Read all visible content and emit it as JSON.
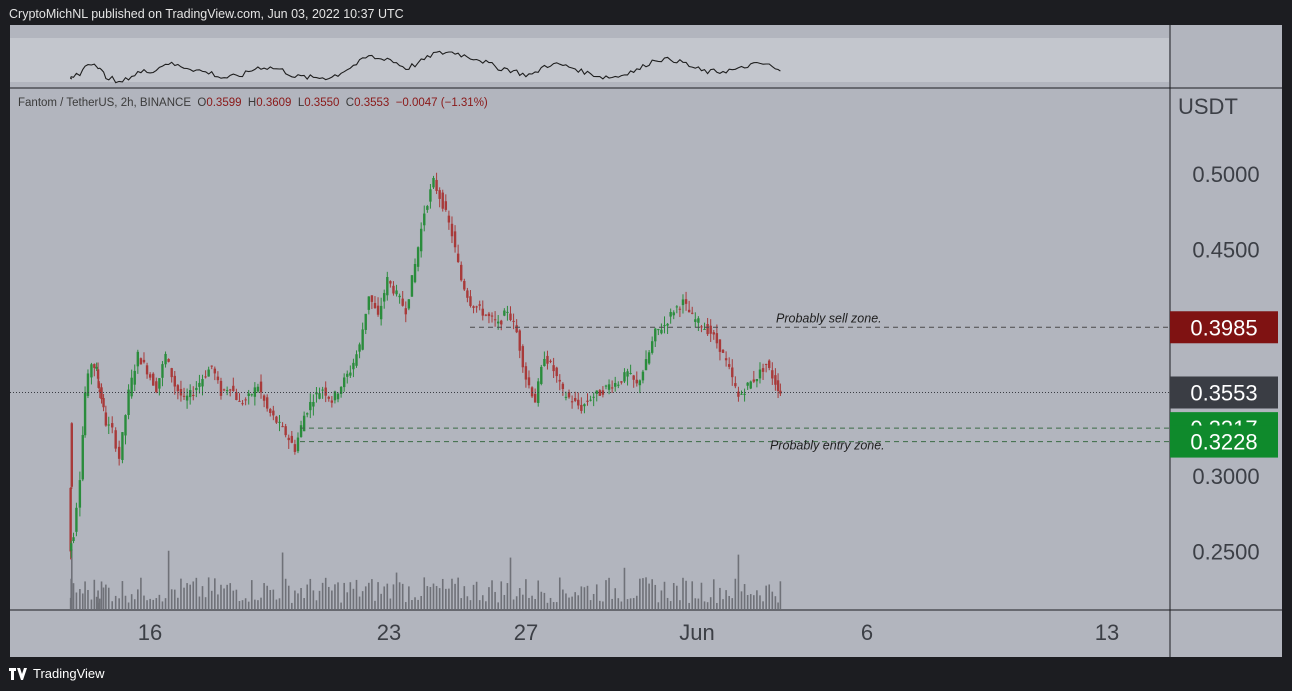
{
  "header": {
    "published": "CryptoMichNL published on TradingView.com, Jun 03, 2022 10:37 UTC"
  },
  "legend": {
    "pair": "Fantom / TetherUS, 2h, BINANCE",
    "o_label": "O",
    "o": "0.3599",
    "h_label": "H",
    "h": "0.3609",
    "l_label": "L",
    "l": "0.3550",
    "c_label": "C",
    "c": "0.3553",
    "change": "−0.0047 (−1.31%)"
  },
  "footer": {
    "brand": "TradingView"
  },
  "colors": {
    "up": "#2a8c3c",
    "down": "#a83a3a",
    "volume": "#6f7178",
    "sell_badge": "#7f1212",
    "price_badge": "#3a3d44",
    "entry_badge": "#0f8a2c"
  },
  "chart_data": {
    "type": "candlestick",
    "currency_label": "USDT",
    "y_ticks": [
      "0.5000",
      "0.4500",
      "0.3000",
      "0.2500"
    ],
    "x_ticks": [
      "16",
      "23",
      "27",
      "Jun",
      "6",
      "13"
    ],
    "price_path": [
      [
        0.27,
        0.335
      ],
      [
        0.26,
        0.25
      ],
      [
        0.28,
        0.262
      ],
      [
        0.31,
        0.3
      ],
      [
        0.33,
        0.355
      ],
      [
        0.36,
        0.375
      ],
      [
        0.38,
        0.37
      ],
      [
        0.385,
        0.36
      ],
      [
        0.4,
        0.352
      ],
      [
        0.42,
        0.335
      ],
      [
        0.45,
        0.33
      ],
      [
        0.48,
        0.312
      ],
      [
        0.52,
        0.355
      ],
      [
        0.56,
        0.38
      ],
      [
        0.6,
        0.37
      ],
      [
        0.64,
        0.358
      ],
      [
        0.68,
        0.38
      ],
      [
        0.72,
        0.36
      ],
      [
        0.76,
        0.35
      ],
      [
        0.8,
        0.356
      ],
      [
        0.84,
        0.365
      ],
      [
        0.88,
        0.373
      ],
      [
        0.92,
        0.355
      ],
      [
        0.96,
        0.36
      ],
      [
        1.0,
        0.348
      ],
      [
        1.04,
        0.352
      ],
      [
        1.08,
        0.36
      ],
      [
        1.12,
        0.344
      ],
      [
        1.16,
        0.336
      ],
      [
        1.2,
        0.328
      ],
      [
        1.24,
        0.318
      ],
      [
        1.28,
        0.34
      ],
      [
        1.32,
        0.352
      ],
      [
        1.36,
        0.358
      ],
      [
        1.4,
        0.35
      ],
      [
        1.44,
        0.36
      ],
      [
        1.48,
        0.37
      ],
      [
        1.52,
        0.386
      ],
      [
        1.56,
        0.42
      ],
      [
        1.6,
        0.405
      ],
      [
        1.64,
        0.43
      ],
      [
        1.68,
        0.42
      ],
      [
        1.72,
        0.41
      ],
      [
        1.76,
        0.44
      ],
      [
        1.8,
        0.475
      ],
      [
        1.84,
        0.495
      ],
      [
        1.88,
        0.48
      ],
      [
        1.92,
        0.46
      ],
      [
        1.96,
        0.43
      ],
      [
        2.0,
        0.415
      ],
      [
        2.04,
        0.41
      ],
      [
        2.08,
        0.405
      ],
      [
        2.12,
        0.4
      ],
      [
        2.16,
        0.41
      ],
      [
        2.2,
        0.395
      ],
      [
        2.24,
        0.365
      ],
      [
        2.28,
        0.35
      ],
      [
        2.32,
        0.38
      ],
      [
        2.36,
        0.37
      ],
      [
        2.4,
        0.355
      ],
      [
        2.44,
        0.35
      ],
      [
        2.48,
        0.345
      ],
      [
        2.52,
        0.352
      ],
      [
        2.56,
        0.355
      ],
      [
        2.6,
        0.36
      ],
      [
        2.64,
        0.362
      ],
      [
        2.68,
        0.368
      ],
      [
        2.72,
        0.36
      ],
      [
        2.76,
        0.375
      ],
      [
        2.8,
        0.395
      ],
      [
        2.84,
        0.4
      ],
      [
        2.88,
        0.41
      ],
      [
        2.92,
        0.415
      ],
      [
        2.96,
        0.405
      ],
      [
        3.0,
        0.4
      ],
      [
        3.04,
        0.395
      ],
      [
        3.08,
        0.385
      ],
      [
        3.12,
        0.37
      ],
      [
        3.16,
        0.352
      ],
      [
        3.2,
        0.36
      ],
      [
        3.24,
        0.366
      ],
      [
        3.28,
        0.374
      ],
      [
        3.32,
        0.362
      ],
      [
        3.34,
        0.3553
      ]
    ],
    "last_price": "0.3553",
    "levels": [
      {
        "name": "sell",
        "value": 0.3985,
        "label": "0.3985",
        "annotation": "Probably sell zone."
      },
      {
        "name": "entry-high",
        "value": 0.3317,
        "label": "0.3317",
        "annotation": ""
      },
      {
        "name": "entry-low",
        "value": 0.3228,
        "label": "0.3228",
        "annotation": "Probably entry zone."
      }
    ]
  }
}
